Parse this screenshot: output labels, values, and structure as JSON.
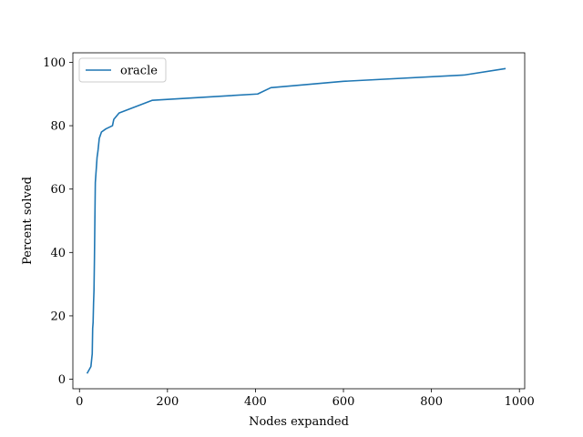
{
  "chart_data": {
    "type": "line",
    "xlabel": "Nodes expanded",
    "ylabel": "Percent solved",
    "xlim": [
      -15,
      1012
    ],
    "ylim": [
      -3,
      103
    ],
    "xticks": [
      0,
      200,
      400,
      600,
      800,
      1000
    ],
    "yticks": [
      0,
      20,
      40,
      60,
      80,
      100
    ],
    "grid": false,
    "legend": {
      "position": "top-left"
    },
    "series": [
      {
        "name": "oracle",
        "color": "#1f77b4",
        "x": [
          18,
          26,
          29,
          30,
          31,
          32,
          33,
          34,
          35,
          36,
          37,
          38,
          40,
          42,
          45,
          50,
          60,
          75,
          78,
          90,
          165,
          405,
          435,
          600,
          875,
          967
        ],
        "y": [
          2,
          4,
          8,
          16,
          18,
          24,
          28,
          38,
          50,
          62,
          64,
          66,
          70,
          72,
          76,
          78,
          79,
          80,
          82,
          84,
          88,
          90,
          92,
          94,
          96,
          98
        ]
      }
    ]
  }
}
